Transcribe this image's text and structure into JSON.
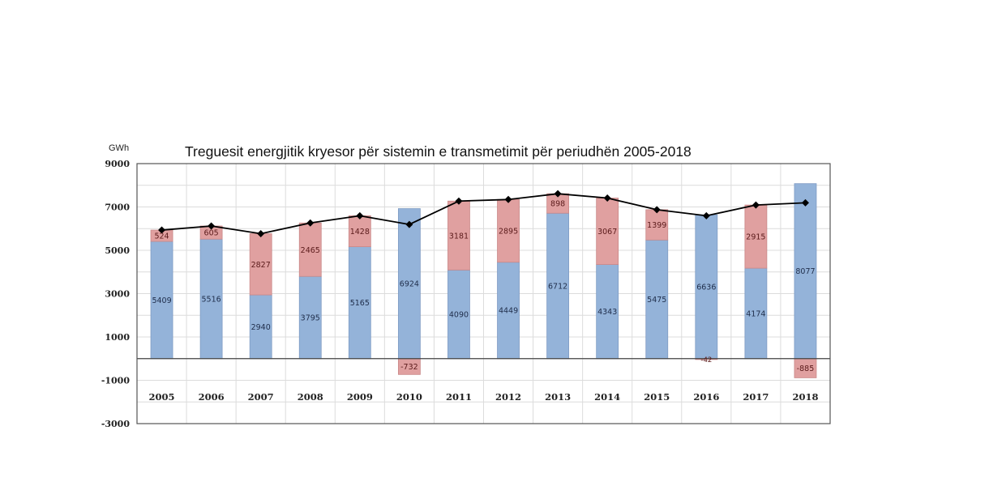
{
  "chart_data": {
    "type": "bar",
    "stacked": true,
    "title": "Treguesit energjitik kryesor për sistemin e transmetimit për periudhën 2005-2018",
    "ylabel": "GWh",
    "xlabel": "",
    "ylim": [
      -3000,
      9000
    ],
    "yticks": [
      9000,
      7000,
      5000,
      3000,
      1000,
      -1000,
      -3000
    ],
    "gridlines_step": 1000,
    "grid": true,
    "legend": "none",
    "categories": [
      "2005",
      "2006",
      "2007",
      "2008",
      "2009",
      "2010",
      "2011",
      "2012",
      "2013",
      "2014",
      "2015",
      "2016",
      "2017",
      "2018"
    ],
    "series": [
      {
        "name": "blue",
        "type": "bar",
        "color": "#94b3d9",
        "values": [
          5409,
          5516,
          2940,
          3795,
          5165,
          6924,
          4090,
          4449,
          6712,
          4343,
          5475,
          6636,
          4174,
          8077
        ]
      },
      {
        "name": "red",
        "type": "bar",
        "color": "#e0a0a0",
        "values": [
          524,
          605,
          2827,
          2465,
          1428,
          -732,
          3181,
          2895,
          898,
          3067,
          1399,
          -42,
          2915,
          -885
        ]
      },
      {
        "name": "total",
        "type": "line",
        "color": "#000000",
        "marker": "diamond",
        "values": [
          5933,
          6121,
          5767,
          6260,
          6593,
          6192,
          7271,
          7344,
          7610,
          7410,
          6874,
          6594,
          7089,
          7192
        ]
      }
    ]
  }
}
